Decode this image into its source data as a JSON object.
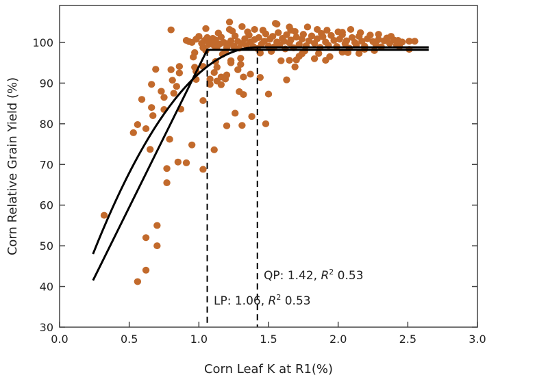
{
  "chart_data": {
    "type": "scatter",
    "title": "",
    "xlabel": "Corn Leaf K at R1(%)",
    "ylabel": "Corn Relative Grain Yield (%)",
    "xlim": [
      0.0,
      3.0
    ],
    "ylim": [
      30,
      105
    ],
    "xticks": [
      "0.0",
      "0.5",
      "1.0",
      "1.5",
      "2.0",
      "2.5",
      "3.0"
    ],
    "yticks": [
      "30",
      "40",
      "50",
      "60",
      "70",
      "80",
      "90",
      "100"
    ],
    "grid": false,
    "point_color": "#c26a2c",
    "line_color": "#000000",
    "points": [
      [
        0.32,
        57.5
      ],
      [
        0.56,
        41.2
      ],
      [
        0.62,
        44
      ],
      [
        0.62,
        52
      ],
      [
        0.7,
        55
      ],
      [
        0.7,
        50
      ],
      [
        0.8,
        103.1
      ],
      [
        1.22,
        105
      ],
      [
        1.22,
        103.2
      ],
      [
        1.31,
        103.9
      ],
      [
        1.4,
        103.2
      ],
      [
        1.55,
        104.7
      ],
      [
        1.05,
        103.4
      ],
      [
        0.91,
        100.5
      ],
      [
        0.95,
        100
      ],
      [
        0.69,
        93.4
      ],
      [
        0.8,
        93.3
      ],
      [
        0.86,
        94.1
      ],
      [
        0.86,
        92.5
      ],
      [
        0.81,
        90.7
      ],
      [
        0.84,
        89.2
      ],
      [
        0.82,
        87.5
      ],
      [
        0.66,
        89.7
      ],
      [
        0.73,
        88
      ],
      [
        0.75,
        86.5
      ],
      [
        0.59,
        86
      ],
      [
        0.66,
        84
      ],
      [
        0.75,
        83.5
      ],
      [
        0.67,
        82
      ],
      [
        0.87,
        83.6
      ],
      [
        0.56,
        79.8
      ],
      [
        0.62,
        78.8
      ],
      [
        0.53,
        77.8
      ],
      [
        0.79,
        76.2
      ],
      [
        0.65,
        73.7
      ],
      [
        0.95,
        74.8
      ],
      [
        1.11,
        73.6
      ],
      [
        0.85,
        70.6
      ],
      [
        0.91,
        70.4
      ],
      [
        0.77,
        69
      ],
      [
        1.03,
        68.8
      ],
      [
        0.77,
        65.5
      ],
      [
        1.03,
        85.7
      ],
      [
        1.26,
        82.6
      ],
      [
        1.2,
        79.5
      ],
      [
        1.31,
        79.6
      ],
      [
        1.38,
        81.8
      ],
      [
        1.48,
        80
      ],
      [
        1.29,
        87.9
      ],
      [
        1.32,
        87.2
      ],
      [
        1.5,
        87.3
      ],
      [
        0.97,
        97.5
      ],
      [
        0.96,
        96.4
      ],
      [
        0.97,
        93.9
      ],
      [
        0.98,
        92.9
      ],
      [
        0.98,
        90.9
      ],
      [
        1.03,
        94.1
      ],
      [
        1.03,
        98.7
      ],
      [
        1.08,
        91
      ],
      [
        1.08,
        89.7
      ],
      [
        1.11,
        92.6
      ],
      [
        1.12,
        95.3
      ],
      [
        1.13,
        93.9
      ],
      [
        1.13,
        90.5
      ],
      [
        1.16,
        89.6
      ],
      [
        1.17,
        97.1
      ],
      [
        1.16,
        91.5
      ],
      [
        1.2,
        92
      ],
      [
        1.19,
        91
      ],
      [
        1.23,
        95.5
      ],
      [
        1.23,
        95
      ],
      [
        1.28,
        93.3
      ],
      [
        1.3,
        96.1
      ],
      [
        1.3,
        94.6
      ],
      [
        1.32,
        91.5
      ],
      [
        1.37,
        92.2
      ],
      [
        1.44,
        91.4
      ],
      [
        1.44,
        97.4
      ],
      [
        1.63,
        90.8
      ],
      [
        1.59,
        95.5
      ],
      [
        1.56,
        104.5
      ],
      [
        1.65,
        103.8
      ],
      [
        1.66,
        103
      ],
      [
        1.78,
        103.8
      ],
      [
        1.85,
        103.2
      ],
      [
        1.92,
        103
      ],
      [
        2.09,
        103.2
      ],
      [
        2.03,
        102.5
      ],
      [
        2.29,
        102
      ],
      [
        2.38,
        101.5
      ],
      [
        2.43,
        100.5
      ],
      [
        2.44,
        99
      ],
      [
        2.51,
        100.3
      ],
      [
        2.55,
        100.3
      ],
      [
        2.51,
        98.3
      ],
      [
        1.65,
        95.6
      ],
      [
        1.69,
        94
      ],
      [
        1.7,
        95.7
      ],
      [
        1.72,
        96.6
      ],
      [
        1.74,
        97.2
      ],
      [
        1.83,
        96
      ],
      [
        1.86,
        97.3
      ],
      [
        1.91,
        95.6
      ],
      [
        1.94,
        96.5
      ],
      [
        2.03,
        97.6
      ],
      [
        2.15,
        97.3
      ],
      [
        2.19,
        98.3
      ],
      [
        0.93,
        100.2
      ],
      [
        0.98,
        100.8
      ],
      [
        1.0,
        101.5
      ],
      [
        1.02,
        99.8
      ],
      [
        1.04,
        100.5
      ],
      [
        1.06,
        101.2
      ],
      [
        1.07,
        99.5
      ],
      [
        1.08,
        100.2
      ],
      [
        1.1,
        101.0
      ],
      [
        1.11,
        99.2
      ],
      [
        1.12,
        100.6
      ],
      [
        1.13,
        98.9
      ],
      [
        1.15,
        99.6
      ],
      [
        1.16,
        101.3
      ],
      [
        1.18,
        100.0
      ],
      [
        1.2,
        98.8
      ],
      [
        1.21,
        99.7
      ],
      [
        1.23,
        100.4
      ],
      [
        1.25,
        99.1
      ],
      [
        1.26,
        101.6
      ],
      [
        1.28,
        100.2
      ],
      [
        1.29,
        98.6
      ],
      [
        1.31,
        99.8
      ],
      [
        1.33,
        100.9
      ],
      [
        1.34,
        99.3
      ],
      [
        1.36,
        101.8
      ],
      [
        1.37,
        100.1
      ],
      [
        1.39,
        99.0
      ],
      [
        1.4,
        100.7
      ],
      [
        1.42,
        98.5
      ],
      [
        1.43,
        101.2
      ],
      [
        1.45,
        99.6
      ],
      [
        1.47,
        100.3
      ],
      [
        1.48,
        102.1
      ],
      [
        1.5,
        99.1
      ],
      [
        1.51,
        100.8
      ],
      [
        1.53,
        101.5
      ],
      [
        1.54,
        98.9
      ],
      [
        1.56,
        100.1
      ],
      [
        1.57,
        102.4
      ],
      [
        1.58,
        99.4
      ],
      [
        1.6,
        101.0
      ],
      [
        1.61,
        100.3
      ],
      [
        1.62,
        98.4
      ],
      [
        1.63,
        101.9
      ],
      [
        1.65,
        99.9
      ],
      [
        1.66,
        100.6
      ],
      [
        1.68,
        98.7
      ],
      [
        1.7,
        101.3
      ],
      [
        1.72,
        99.5
      ],
      [
        1.74,
        100.8
      ],
      [
        1.75,
        102.0
      ],
      [
        1.77,
        99.2
      ],
      [
        1.79,
        100.4
      ],
      [
        1.81,
        101.6
      ],
      [
        1.83,
        99.8
      ],
      [
        1.85,
        100.9
      ],
      [
        1.87,
        98.8
      ],
      [
        1.89,
        101.4
      ],
      [
        1.91,
        100.1
      ],
      [
        1.93,
        99.3
      ],
      [
        1.95,
        101.7
      ],
      [
        1.97,
        100.5
      ],
      [
        1.99,
        99.0
      ],
      [
        2.01,
        100.8
      ],
      [
        2.03,
        101.9
      ],
      [
        2.05,
        99.7
      ],
      [
        2.06,
        100.4
      ],
      [
        2.08,
        98.6
      ],
      [
        2.1,
        101.2
      ],
      [
        2.12,
        100.0
      ],
      [
        2.13,
        99.4
      ],
      [
        2.15,
        101.5
      ],
      [
        2.17,
        100.3
      ],
      [
        2.19,
        99.1
      ],
      [
        2.21,
        100.9
      ],
      [
        2.23,
        101.8
      ],
      [
        2.25,
        100.2
      ],
      [
        2.27,
        99.6
      ],
      [
        2.29,
        100.7
      ],
      [
        2.31,
        98.9
      ],
      [
        2.33,
        100.4
      ],
      [
        2.35,
        101.1
      ],
      [
        2.37,
        99.8
      ],
      [
        2.4,
        100.6
      ],
      [
        2.42,
        99.4
      ],
      [
        2.46,
        100.1
      ],
      [
        1.14,
        102.3
      ],
      [
        1.24,
        102.8
      ],
      [
        1.35,
        102.6
      ],
      [
        1.46,
        103.0
      ],
      [
        1.69,
        102.7
      ],
      [
        1.88,
        102.2
      ],
      [
        2.0,
        102.6
      ],
      [
        2.16,
        102.4
      ],
      [
        1.05,
        98.0
      ],
      [
        1.19,
        97.6
      ],
      [
        1.52,
        97.8
      ],
      [
        1.76,
        97.9
      ],
      [
        2.07,
        97.5
      ],
      [
        2.26,
        98.0
      ]
    ],
    "fits": [
      {
        "model": "linear-plateau",
        "start": [
          0.24,
          41.5
        ],
        "join_x": 1.06,
        "plateau": 98.2,
        "end_x": 2.65
      },
      {
        "model": "quadratic-plateau",
        "start": [
          0.24,
          48.0
        ],
        "join_x": 1.42,
        "plateau": 98.8,
        "end_x": 2.65
      }
    ],
    "critical_lines": [
      1.06,
      1.42
    ],
    "annotations": {
      "qp": {
        "prefix": "QP: 1.42, ",
        "r": "R",
        "sup": "2",
        "suffix": " 0.53"
      },
      "lp": {
        "prefix": "LP: 1.06, ",
        "r": "R",
        "sup": "2",
        "suffix": " 0.53"
      }
    }
  }
}
